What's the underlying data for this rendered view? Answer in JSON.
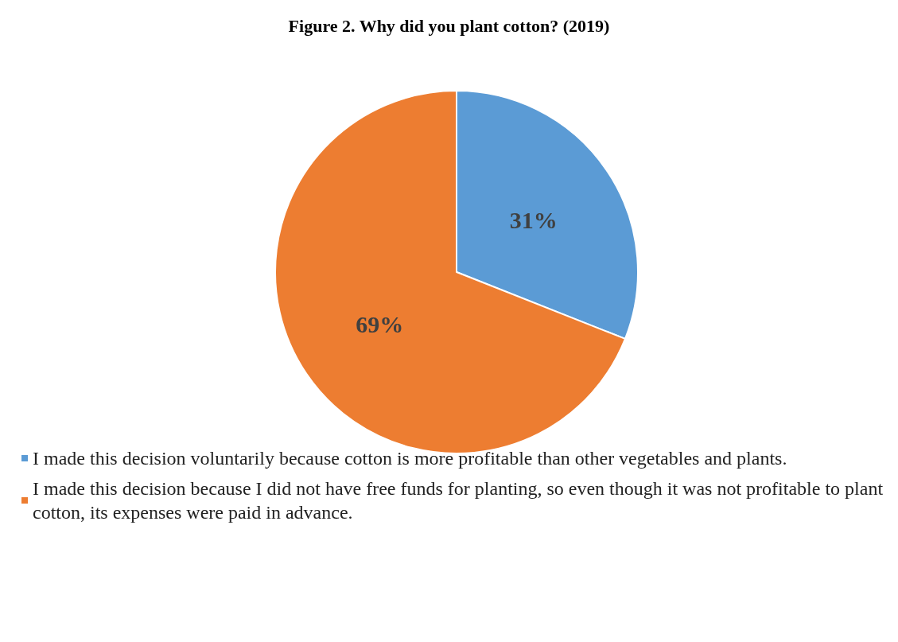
{
  "chart_data": {
    "type": "pie",
    "title": "Figure 2. Why did you plant cotton? (2019)",
    "categories": [
      "I made this decision voluntarily because cotton is more profitable than other vegetables and plants.",
      "I made this decision because I did not have free funds for planting, so even though it was not profitable to plant cotton, its expenses were paid in advance."
    ],
    "values": [
      31,
      69
    ],
    "colors": [
      "#5b9bd5",
      "#ed7d31"
    ],
    "value_labels": [
      "31%",
      "69%"
    ],
    "legend": "bottom"
  }
}
